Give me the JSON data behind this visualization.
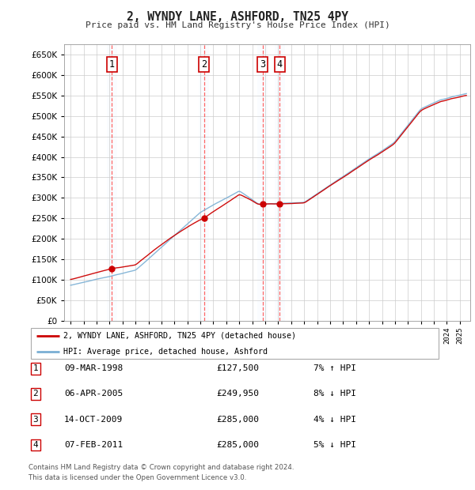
{
  "title": "2, WYNDY LANE, ASHFORD, TN25 4PY",
  "subtitle": "Price paid vs. HM Land Registry's House Price Index (HPI)",
  "ylim": [
    0,
    675000
  ],
  "yticks": [
    0,
    50000,
    100000,
    150000,
    200000,
    250000,
    300000,
    350000,
    400000,
    450000,
    500000,
    550000,
    600000,
    650000
  ],
  "background_color": "#ffffff",
  "grid_color": "#cccccc",
  "legend_label_red": "2, WYNDY LANE, ASHFORD, TN25 4PY (detached house)",
  "legend_label_blue": "HPI: Average price, detached house, Ashford",
  "transactions": [
    {
      "num": 1,
      "date": "09-MAR-1998",
      "price": 127500,
      "price_str": "£127,500",
      "pct": "7%",
      "dir": "↑",
      "year": 1998.19
    },
    {
      "num": 2,
      "date": "06-APR-2005",
      "price": 249950,
      "price_str": "£249,950",
      "pct": "8%",
      "dir": "↓",
      "year": 2005.27
    },
    {
      "num": 3,
      "date": "14-OCT-2009",
      "price": 285000,
      "price_str": "£285,000",
      "pct": "4%",
      "dir": "↓",
      "year": 2009.79
    },
    {
      "num": 4,
      "date": "07-FEB-2011",
      "price": 285000,
      "price_str": "£285,000",
      "pct": "5%",
      "dir": "↓",
      "year": 2011.11
    }
  ],
  "footer_line1": "Contains HM Land Registry data © Crown copyright and database right 2024.",
  "footer_line2": "This data is licensed under the Open Government Licence v3.0.",
  "red_color": "#cc0000",
  "blue_color": "#7aafd4",
  "vline_color": "#ff5555",
  "box_color": "#cc0000",
  "shade_color": "#ddeeff",
  "xlim_left": 1994.5,
  "xlim_right": 2025.8
}
